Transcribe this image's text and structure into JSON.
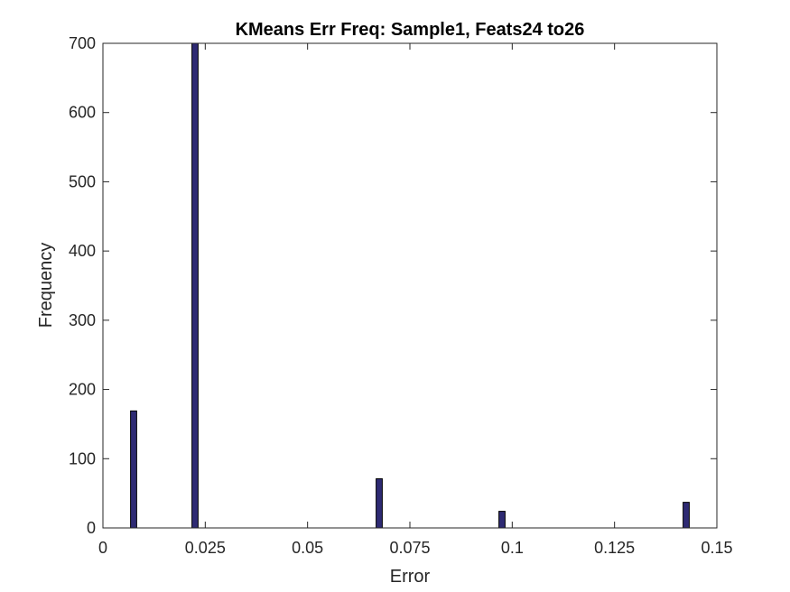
{
  "chart_data": {
    "type": "bar",
    "title": "KMeans Err Freq: Sample1, Feats24 to26",
    "xlabel": "Error",
    "ylabel": "Frequency",
    "xlim": [
      0,
      0.15
    ],
    "ylim": [
      0,
      700
    ],
    "xticks": [
      0,
      0.025,
      0.05,
      0.075,
      0.1,
      0.125,
      0.15
    ],
    "xtick_labels": [
      "0",
      "0.025",
      "0.05",
      "0.075",
      "0.1",
      "0.125",
      "0.15"
    ],
    "yticks": [
      0,
      100,
      200,
      300,
      400,
      500,
      600,
      700
    ],
    "ytick_labels": [
      "0",
      "100",
      "200",
      "300",
      "400",
      "500",
      "600",
      "700"
    ],
    "bin_width": 0.0015,
    "bars": [
      {
        "x": 0.0075,
        "value": 169
      },
      {
        "x": 0.0225,
        "value": 700
      },
      {
        "x": 0.0675,
        "value": 71
      },
      {
        "x": 0.0975,
        "value": 24
      },
      {
        "x": 0.1425,
        "value": 37
      }
    ],
    "grid": false,
    "bar_color": "#2E2A73",
    "edge_color": "#000000"
  }
}
